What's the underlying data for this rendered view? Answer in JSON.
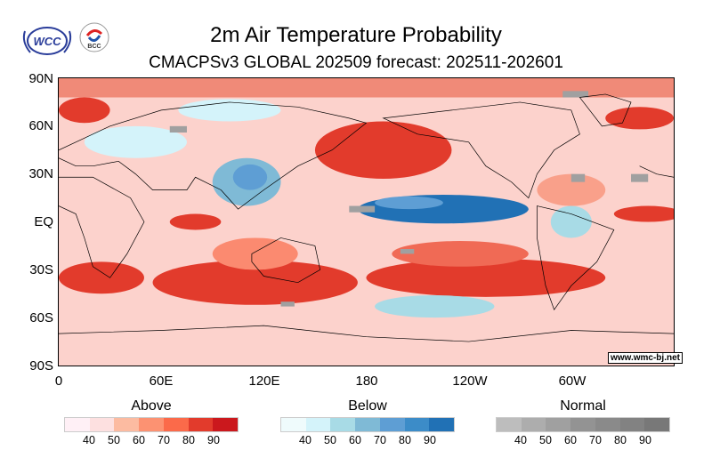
{
  "header": {
    "title": "2m Air Temperature Probability",
    "subtitle": "CMACPSv3 GLOBAL 202509 forecast: 202511-202601",
    "logos": [
      "WCC",
      "BCC"
    ]
  },
  "axes": {
    "y_labels": [
      "90N",
      "60N",
      "30N",
      "EQ",
      "30S",
      "60S",
      "90S"
    ],
    "x_labels": [
      "0",
      "60E",
      "120E",
      "180",
      "120W",
      "60W"
    ]
  },
  "watermark": "www.wmc-bj.net",
  "legends": [
    {
      "title": "Above",
      "colors": [
        "#fff0f6",
        "#fde0e0",
        "#fcbba1",
        "#fc9272",
        "#fb6a4a",
        "#e23b2c",
        "#cb181d"
      ],
      "ticks": [
        "40",
        "50",
        "60",
        "70",
        "80",
        "90"
      ]
    },
    {
      "title": "Below",
      "colors": [
        "#effbfc",
        "#d4f3fa",
        "#a8dbe6",
        "#7fbad6",
        "#5e9ed4",
        "#3c8cc8",
        "#2171b5"
      ],
      "ticks": [
        "40",
        "50",
        "60",
        "70",
        "80",
        "90"
      ]
    },
    {
      "title": "Normal",
      "colors": [
        "#bdbdbd",
        "#adadad",
        "#a0a0a0",
        "#939393",
        "#8a8a8a",
        "#828282",
        "#787878"
      ],
      "ticks": [
        "40",
        "50",
        "60",
        "70",
        "80",
        "90"
      ]
    }
  ]
}
